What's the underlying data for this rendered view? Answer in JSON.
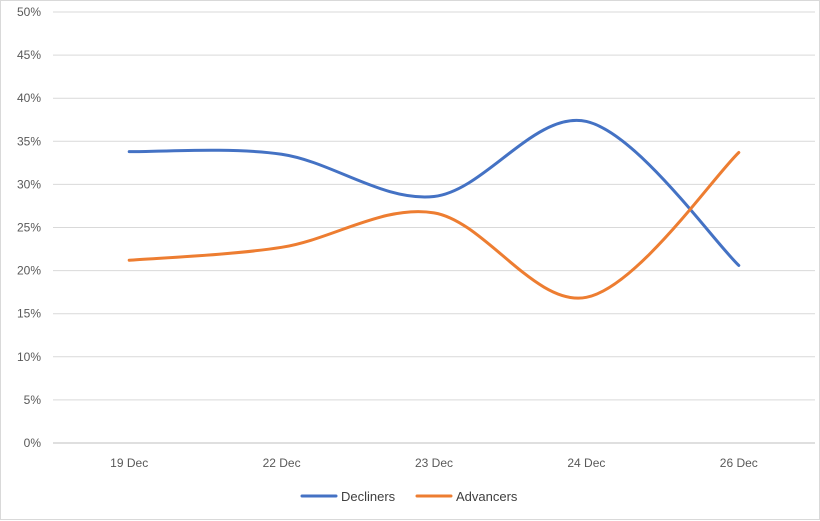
{
  "chart_data": {
    "type": "line",
    "title": "",
    "xlabel": "",
    "ylabel": "",
    "categories": [
      "19 Dec",
      "22 Dec",
      "23 Dec",
      "24 Dec",
      "26 Dec"
    ],
    "y_ticks": [
      "0%",
      "5%",
      "10%",
      "15%",
      "20%",
      "25%",
      "30%",
      "35%",
      "40%",
      "45%",
      "50%"
    ],
    "ylim": [
      0,
      50
    ],
    "y_unit": "%",
    "grid": true,
    "smoothed": true,
    "legend_position": "bottom",
    "series": [
      {
        "name": "Decliners",
        "color": "#4472C4",
        "values": [
          33.8,
          33.5,
          28.6,
          37.3,
          20.6
        ]
      },
      {
        "name": "Advancers",
        "color": "#ED7D31",
        "values": [
          21.2,
          22.7,
          26.7,
          16.9,
          33.7
        ]
      }
    ]
  }
}
